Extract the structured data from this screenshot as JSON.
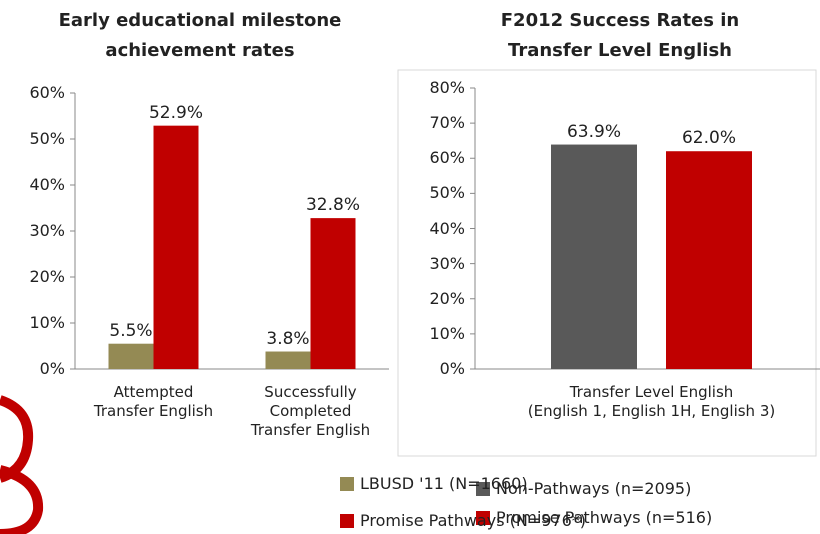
{
  "chart_data": [
    {
      "type": "bar",
      "title": "Early educational milestone\nachievement rates",
      "categories": [
        "Attempted\nTransfer English",
        "Successfully\nCompleted\nTransfer English"
      ],
      "series": [
        {
          "name": "LBUSD '11 (N=1660)",
          "color": "#948a54",
          "values": [
            5.5,
            3.8
          ],
          "value_labels": [
            "5.5%",
            "3.8%"
          ]
        },
        {
          "name": "Promise Pathways (N=976*)",
          "color": "#c00000",
          "values": [
            52.9,
            32.8
          ],
          "value_labels": [
            "52.9%",
            "32.8%"
          ]
        }
      ],
      "ylim": [
        0,
        60
      ],
      "yticks": [
        {
          "value": 0,
          "label": "0%"
        },
        {
          "value": 10,
          "label": "10%"
        },
        {
          "value": 20,
          "label": "20%"
        },
        {
          "value": 30,
          "label": "30%"
        },
        {
          "value": 40,
          "label": "40%"
        },
        {
          "value": 50,
          "label": "50%"
        },
        {
          "value": 60,
          "label": "60%"
        }
      ],
      "legend": "bottom"
    },
    {
      "type": "bar",
      "title": "F2012 Success Rates in\nTransfer Level English",
      "categories": [
        "Transfer Level English\n(English 1, English 1H, English 3)"
      ],
      "series": [
        {
          "name": "Non-Pathways (n=2095)",
          "color": "#595959",
          "values": [
            63.9
          ],
          "value_labels": [
            "63.9%"
          ]
        },
        {
          "name": "Promise Pathways (n=516)",
          "color": "#c00000",
          "values": [
            62.0
          ],
          "value_labels": [
            "62.0%"
          ]
        }
      ],
      "ylim": [
        0,
        80
      ],
      "yticks": [
        {
          "value": 0,
          "label": "0%"
        },
        {
          "value": 10,
          "label": "10%"
        },
        {
          "value": 20,
          "label": "20%"
        },
        {
          "value": 30,
          "label": "30%"
        },
        {
          "value": 40,
          "label": "40%"
        },
        {
          "value": 50,
          "label": "50%"
        },
        {
          "value": 60,
          "label": "60%"
        },
        {
          "value": 70,
          "label": "70%"
        },
        {
          "value": 80,
          "label": "80%"
        }
      ],
      "legend": "bottom"
    }
  ]
}
